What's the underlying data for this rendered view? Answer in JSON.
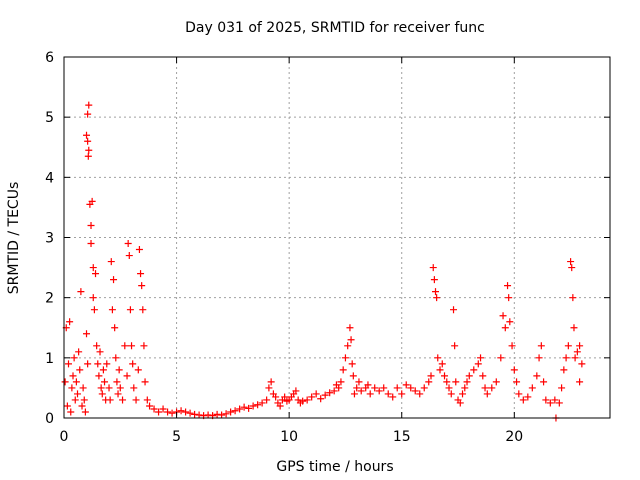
{
  "chart_data": {
    "type": "scatter",
    "title": "Day 031 of 2025, SRMTID for receiver func",
    "xlabel": "GPS time / hours",
    "ylabel": "SRMTID / TECUs",
    "xlim": [
      0,
      24.25
    ],
    "ylim": [
      0,
      6
    ],
    "xticks": [
      0,
      5,
      10,
      15,
      20
    ],
    "yticks": [
      0,
      1,
      2,
      3,
      4,
      5,
      6
    ],
    "grid": true,
    "marker": "plus",
    "color": "#ff0000",
    "series": [
      {
        "name": "SRMTID",
        "points": [
          [
            0.05,
            0.6
          ],
          [
            0.1,
            1.5
          ],
          [
            0.15,
            0.2
          ],
          [
            0.2,
            0.9
          ],
          [
            0.25,
            1.6
          ],
          [
            0.3,
            0.1
          ],
          [
            0.35,
            0.5
          ],
          [
            0.4,
            0.7
          ],
          [
            0.45,
            1.0
          ],
          [
            0.5,
            0.3
          ],
          [
            0.55,
            0.6
          ],
          [
            0.6,
            0.4
          ],
          [
            0.65,
            1.1
          ],
          [
            0.7,
            0.8
          ],
          [
            0.75,
            2.1
          ],
          [
            0.8,
            0.2
          ],
          [
            0.85,
            0.5
          ],
          [
            0.9,
            0.3
          ],
          [
            0.95,
            0.1
          ],
          [
            1.0,
            1.4
          ],
          [
            1.05,
            0.9
          ],
          [
            1.0,
            4.7
          ],
          [
            1.05,
            4.6
          ],
          [
            1.1,
            5.2
          ],
          [
            1.05,
            5.05
          ],
          [
            1.1,
            4.45
          ],
          [
            1.08,
            4.35
          ],
          [
            1.15,
            3.55
          ],
          [
            1.2,
            3.2
          ],
          [
            1.2,
            2.9
          ],
          [
            1.25,
            3.6
          ],
          [
            1.3,
            2.5
          ],
          [
            1.3,
            2.0
          ],
          [
            1.35,
            1.8
          ],
          [
            1.4,
            2.4
          ],
          [
            1.45,
            1.2
          ],
          [
            1.5,
            0.9
          ],
          [
            1.55,
            0.7
          ],
          [
            1.6,
            1.1
          ],
          [
            1.65,
            0.5
          ],
          [
            1.7,
            0.4
          ],
          [
            1.75,
            0.8
          ],
          [
            1.8,
            0.6
          ],
          [
            1.85,
            0.3
          ],
          [
            1.9,
            0.9
          ],
          [
            2.0,
            0.5
          ],
          [
            2.05,
            0.3
          ],
          [
            2.1,
            2.6
          ],
          [
            2.15,
            1.8
          ],
          [
            2.2,
            2.3
          ],
          [
            2.25,
            1.5
          ],
          [
            2.3,
            1.0
          ],
          [
            2.35,
            0.6
          ],
          [
            2.4,
            0.4
          ],
          [
            2.45,
            0.8
          ],
          [
            2.5,
            0.5
          ],
          [
            2.6,
            0.3
          ],
          [
            2.7,
            1.2
          ],
          [
            2.8,
            0.7
          ],
          [
            2.85,
            2.9
          ],
          [
            2.9,
            2.7
          ],
          [
            2.95,
            1.8
          ],
          [
            3.0,
            1.2
          ],
          [
            3.05,
            0.9
          ],
          [
            3.1,
            0.5
          ],
          [
            3.2,
            0.3
          ],
          [
            3.3,
            0.8
          ],
          [
            3.35,
            2.8
          ],
          [
            3.4,
            2.4
          ],
          [
            3.45,
            2.2
          ],
          [
            3.5,
            1.8
          ],
          [
            3.55,
            1.2
          ],
          [
            3.6,
            0.6
          ],
          [
            3.7,
            0.3
          ],
          [
            3.8,
            0.2
          ],
          [
            4.0,
            0.15
          ],
          [
            4.2,
            0.1
          ],
          [
            4.4,
            0.15
          ],
          [
            4.6,
            0.1
          ],
          [
            4.8,
            0.08
          ],
          [
            5.0,
            0.1
          ],
          [
            5.2,
            0.12
          ],
          [
            5.4,
            0.1
          ],
          [
            5.6,
            0.08
          ],
          [
            5.8,
            0.06
          ],
          [
            6.0,
            0.05
          ],
          [
            6.2,
            0.04
          ],
          [
            6.4,
            0.05
          ],
          [
            6.6,
            0.04
          ],
          [
            6.8,
            0.06
          ],
          [
            7.0,
            0.05
          ],
          [
            7.2,
            0.07
          ],
          [
            7.4,
            0.1
          ],
          [
            7.6,
            0.12
          ],
          [
            7.8,
            0.15
          ],
          [
            8.0,
            0.18
          ],
          [
            8.2,
            0.16
          ],
          [
            8.4,
            0.2
          ],
          [
            8.6,
            0.22
          ],
          [
            8.8,
            0.25
          ],
          [
            9.0,
            0.3
          ],
          [
            9.1,
            0.5
          ],
          [
            9.2,
            0.6
          ],
          [
            9.3,
            0.4
          ],
          [
            9.4,
            0.35
          ],
          [
            9.5,
            0.25
          ],
          [
            9.6,
            0.2
          ],
          [
            9.7,
            0.3
          ],
          [
            9.8,
            0.35
          ],
          [
            9.9,
            0.28
          ],
          [
            10.0,
            0.3
          ],
          [
            10.1,
            0.35
          ],
          [
            10.2,
            0.4
          ],
          [
            10.3,
            0.45
          ],
          [
            10.4,
            0.3
          ],
          [
            10.5,
            0.25
          ],
          [
            10.6,
            0.28
          ],
          [
            10.8,
            0.3
          ],
          [
            11.0,
            0.35
          ],
          [
            11.2,
            0.4
          ],
          [
            11.4,
            0.32
          ],
          [
            11.6,
            0.38
          ],
          [
            11.8,
            0.42
          ],
          [
            12.0,
            0.45
          ],
          [
            12.1,
            0.55
          ],
          [
            12.2,
            0.5
          ],
          [
            12.3,
            0.6
          ],
          [
            12.4,
            0.8
          ],
          [
            12.5,
            1.0
          ],
          [
            12.6,
            1.2
          ],
          [
            12.7,
            1.5
          ],
          [
            12.75,
            1.3
          ],
          [
            12.8,
            0.9
          ],
          [
            12.85,
            0.7
          ],
          [
            12.9,
            0.4
          ],
          [
            13.0,
            0.5
          ],
          [
            13.1,
            0.6
          ],
          [
            13.2,
            0.45
          ],
          [
            13.4,
            0.5
          ],
          [
            13.5,
            0.55
          ],
          [
            13.6,
            0.4
          ],
          [
            13.8,
            0.5
          ],
          [
            14.0,
            0.45
          ],
          [
            14.2,
            0.5
          ],
          [
            14.4,
            0.4
          ],
          [
            14.6,
            0.35
          ],
          [
            14.8,
            0.5
          ],
          [
            15.0,
            0.4
          ],
          [
            15.2,
            0.55
          ],
          [
            15.4,
            0.5
          ],
          [
            15.6,
            0.45
          ],
          [
            15.8,
            0.4
          ],
          [
            16.0,
            0.5
          ],
          [
            16.2,
            0.6
          ],
          [
            16.3,
            0.7
          ],
          [
            16.4,
            2.5
          ],
          [
            16.45,
            2.3
          ],
          [
            16.5,
            2.1
          ],
          [
            16.55,
            2.0
          ],
          [
            16.6,
            1.0
          ],
          [
            16.7,
            0.8
          ],
          [
            16.8,
            0.9
          ],
          [
            16.9,
            0.7
          ],
          [
            17.0,
            0.6
          ],
          [
            17.1,
            0.5
          ],
          [
            17.2,
            0.4
          ],
          [
            17.3,
            1.8
          ],
          [
            17.35,
            1.2
          ],
          [
            17.4,
            0.6
          ],
          [
            17.5,
            0.3
          ],
          [
            17.6,
            0.25
          ],
          [
            17.7,
            0.4
          ],
          [
            17.8,
            0.5
          ],
          [
            17.9,
            0.6
          ],
          [
            18.0,
            0.7
          ],
          [
            18.2,
            0.8
          ],
          [
            18.4,
            0.9
          ],
          [
            18.5,
            1.0
          ],
          [
            18.6,
            0.7
          ],
          [
            18.7,
            0.5
          ],
          [
            18.8,
            0.4
          ],
          [
            19.0,
            0.5
          ],
          [
            19.2,
            0.6
          ],
          [
            19.4,
            1.0
          ],
          [
            19.5,
            1.7
          ],
          [
            19.6,
            1.5
          ],
          [
            19.7,
            2.2
          ],
          [
            19.75,
            2.0
          ],
          [
            19.8,
            1.6
          ],
          [
            19.9,
            1.2
          ],
          [
            20.0,
            0.8
          ],
          [
            20.1,
            0.6
          ],
          [
            20.2,
            0.4
          ],
          [
            20.4,
            0.3
          ],
          [
            20.6,
            0.35
          ],
          [
            20.8,
            0.5
          ],
          [
            21.0,
            0.7
          ],
          [
            21.1,
            1.0
          ],
          [
            21.2,
            1.2
          ],
          [
            21.3,
            0.6
          ],
          [
            21.4,
            0.3
          ],
          [
            21.6,
            0.25
          ],
          [
            21.8,
            0.3
          ],
          [
            22.0,
            0.25
          ],
          [
            22.1,
            0.5
          ],
          [
            22.2,
            0.8
          ],
          [
            22.3,
            1.0
          ],
          [
            22.4,
            1.2
          ],
          [
            22.5,
            2.6
          ],
          [
            22.55,
            2.5
          ],
          [
            22.6,
            2.0
          ],
          [
            22.65,
            1.5
          ],
          [
            22.7,
            1.0
          ],
          [
            22.8,
            1.1
          ],
          [
            22.9,
            1.2
          ],
          [
            23.0,
            0.9
          ],
          [
            22.9,
            0.6
          ],
          [
            21.85,
            0.0
          ]
        ]
      }
    ]
  }
}
